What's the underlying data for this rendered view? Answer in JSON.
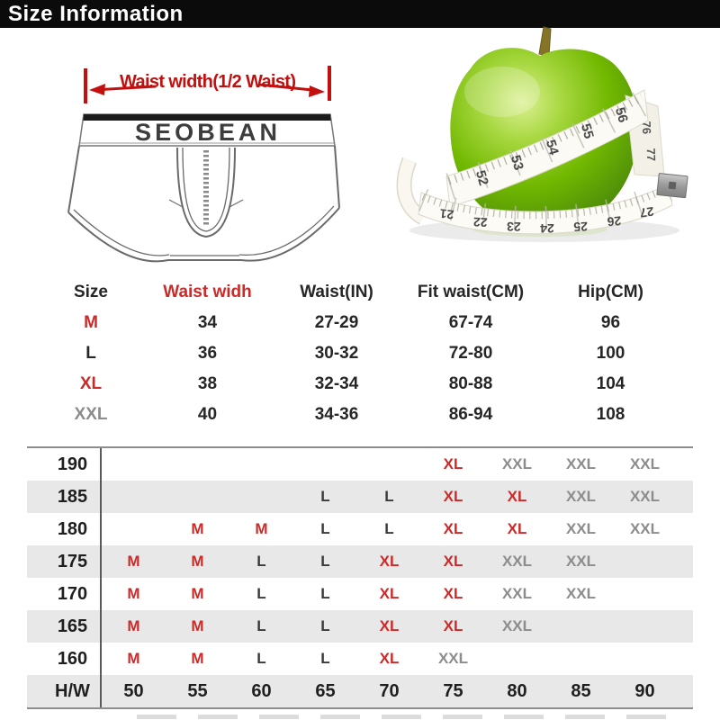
{
  "header": {
    "title": "Size Information"
  },
  "diagram": {
    "annotation": "Waist width(1/2 Waist)",
    "brand": "SEOBEAN"
  },
  "apple": {
    "upper_tape_numbers": [
      "52",
      "53",
      "54",
      "55",
      "56"
    ],
    "side_tape_numbers": [
      "76",
      "77"
    ],
    "lower_tape_numbers": [
      "21",
      "22",
      "23",
      "24",
      "25",
      "26",
      "27"
    ]
  },
  "size_table": {
    "headers": [
      {
        "label": "Size",
        "color": "dark"
      },
      {
        "label": "Waist widh",
        "color": "red"
      },
      {
        "label": "Waist(IN)",
        "color": "dark"
      },
      {
        "label": "Fit waist(CM)",
        "color": "dark"
      },
      {
        "label": "Hip(CM)",
        "color": "dark"
      }
    ],
    "rows": [
      {
        "size": "M",
        "size_color": "red",
        "cells": [
          "34",
          "27-29",
          "67-74",
          "96"
        ]
      },
      {
        "size": "L",
        "size_color": "dark",
        "cells": [
          "36",
          "30-32",
          "72-80",
          "100"
        ]
      },
      {
        "size": "XL",
        "size_color": "red",
        "cells": [
          "38",
          "32-34",
          "80-88",
          "104"
        ]
      },
      {
        "size": "XXL",
        "size_color": "gray",
        "cells": [
          "40",
          "34-36",
          "86-94",
          "108"
        ]
      }
    ]
  },
  "matrix": {
    "corner_label": "H/W",
    "weight_columns": [
      "50",
      "55",
      "60",
      "65",
      "70",
      "75",
      "80",
      "85",
      "90"
    ],
    "rows": [
      {
        "height": "190",
        "cells": [
          "",
          "",
          "",
          "",
          "",
          "XL",
          "XXL",
          "XXL",
          "XXL"
        ]
      },
      {
        "height": "185",
        "cells": [
          "",
          "",
          "",
          "L",
          "L",
          "XL",
          "XL",
          "XXL",
          "XXL"
        ]
      },
      {
        "height": "180",
        "cells": [
          "",
          "M",
          "M",
          "L",
          "L",
          "XL",
          "XL",
          "XXL",
          "XXL"
        ]
      },
      {
        "height": "175",
        "cells": [
          "M",
          "M",
          "L",
          "L",
          "XL",
          "XL",
          "XXL",
          "XXL",
          ""
        ]
      },
      {
        "height": "170",
        "cells": [
          "M",
          "M",
          "L",
          "L",
          "XL",
          "XL",
          "XXL",
          "XXL",
          ""
        ]
      },
      {
        "height": "165",
        "cells": [
          "M",
          "M",
          "L",
          "L",
          "XL",
          "XL",
          "XXL",
          "",
          ""
        ]
      },
      {
        "height": "160",
        "cells": [
          "M",
          "M",
          "L",
          "L",
          "XL",
          "XXL",
          "",
          "",
          ""
        ]
      }
    ]
  },
  "colors": {
    "accent_red": "#cc2a28",
    "annotation_red": "#c40f0f",
    "muted_gray": "#8c8c8c",
    "stripe_gray": "#e8e8e8",
    "apple_green": "#71b800"
  }
}
